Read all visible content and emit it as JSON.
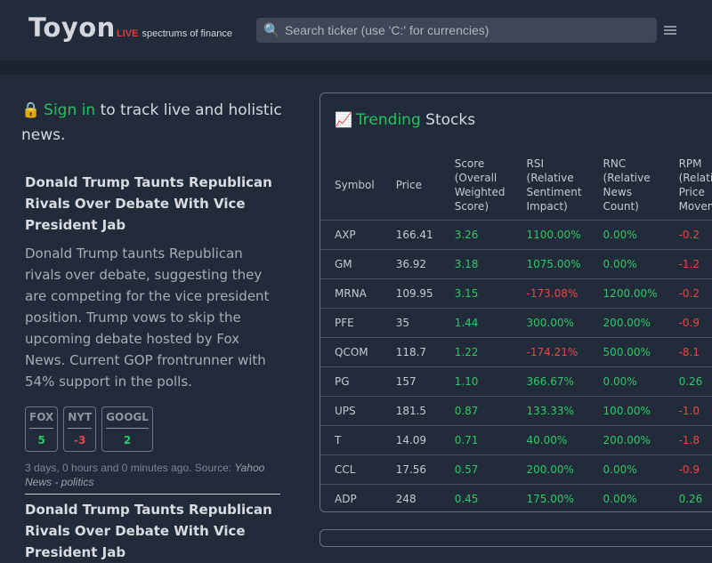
{
  "header": {
    "logo": "Toyon",
    "tagline_live": "LIVE",
    "tagline_rest": "spectrums of finance",
    "search_placeholder": "Search ticker (use 'C:' for currencies)"
  },
  "signin": {
    "link": "Sign in",
    "rest": "to track live and holistic news."
  },
  "articles": [
    {
      "title": "Donald Trump Taunts Republican Rivals Over Debate With Vice President Jab",
      "summary": "Donald Trump taunts Republican rivals over debate, suggesting they are competing for the vice president position. Trump vows to skip the upcoming debate hosted by Fox News. Current GOP frontrunner with 54% support in the polls.",
      "badges": [
        {
          "source": "FOX",
          "value": "5"
        },
        {
          "source": "NYT",
          "value": "-3"
        },
        {
          "source": "GOOGL",
          "value": "2"
        }
      ],
      "time": "3 days, 0 hours and 0 minutes ago. Source:",
      "source": "Yahoo News - politics"
    },
    {
      "title": "Donald Trump Taunts Republican Rivals Over Debate With Vice President Jab"
    }
  ],
  "trending": {
    "title_green": "Trending",
    "title_rest": "Stocks",
    "columns": [
      "Symbol",
      "Price",
      "Score (Overall Weighted Score)",
      "RSI (Relative Sentiment Impact)",
      "RNC (Relative News Count)",
      "RPM (Relative Price Movement)"
    ],
    "rows": [
      [
        "AXP",
        "166.41",
        "3.26",
        "1100.00%",
        "0.00%",
        "-0.2"
      ],
      [
        "GM",
        "36.92",
        "3.18",
        "1075.00%",
        "0.00%",
        "-1.2"
      ],
      [
        "MRNA",
        "109.95",
        "3.15",
        "-173.08%",
        "1200.00%",
        "-0.2"
      ],
      [
        "PFE",
        "35",
        "1.44",
        "300.00%",
        "200.00%",
        "-0.9"
      ],
      [
        "QCOM",
        "118.7",
        "1.22",
        "-174.21%",
        "500.00%",
        "-8.1"
      ],
      [
        "PG",
        "157",
        "1.10",
        "366.67%",
        "0.00%",
        "0.26"
      ],
      [
        "UPS",
        "181.5",
        "0.87",
        "133.33%",
        "100.00%",
        "-1.0"
      ],
      [
        "T",
        "14.09",
        "0.71",
        "40.00%",
        "200.00%",
        "-1.8"
      ],
      [
        "CCL",
        "17.56",
        "0.57",
        "200.00%",
        "0.00%",
        "-0.9"
      ],
      [
        "ADP",
        "248",
        "0.45",
        "175.00%",
        "0.00%",
        "0.26"
      ]
    ]
  }
}
